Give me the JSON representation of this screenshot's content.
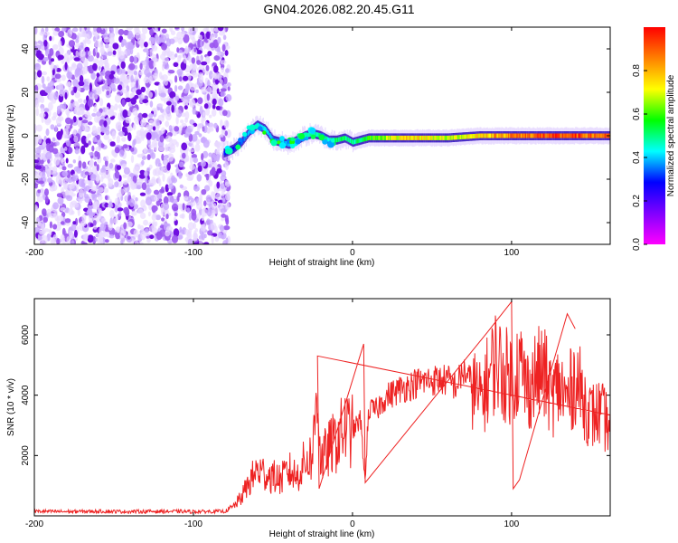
{
  "title": "GN04.2026.082.20.45.G11",
  "chart_data": [
    {
      "type": "heatmap",
      "xlabel": "Height of straight line (km)",
      "ylabel": "Frequency (Hz)",
      "xlim": [
        -200,
        162
      ],
      "ylim": [
        -50,
        50
      ],
      "x_ticks": [
        -200,
        -100,
        0,
        100
      ],
      "x_tick_labels": [
        "-200",
        "-100",
        "0",
        "100"
      ],
      "y_ticks": [
        -40,
        -20,
        0,
        20,
        40
      ],
      "y_tick_labels": [
        "-40",
        "-20",
        "0",
        "20",
        "40"
      ],
      "colorbar": {
        "label": "Normalized spectral amplitude",
        "range": [
          0,
          1
        ],
        "ticks": [
          0,
          0.2,
          0.4,
          0.6,
          0.8
        ],
        "tick_labels": [
          "0.0",
          "0.2",
          "0.4",
          "0.6",
          "0.8"
        ],
        "colors": [
          "#ff00ff",
          "#8000ff",
          "#0000ff",
          "#00ffff",
          "#00ff00",
          "#ffff00",
          "#ff8000",
          "#ff0000"
        ]
      },
      "noise_region_x": [
        -200,
        -81
      ],
      "signal_track": {
        "x": [
          -81,
          -75,
          -70,
          -65,
          -60,
          -55,
          -50,
          -45,
          -40,
          -35,
          -30,
          -25,
          -20,
          -15,
          -10,
          -5,
          0,
          10,
          20,
          40,
          60,
          80,
          100,
          120,
          140,
          162
        ],
        "y": [
          -8,
          -6,
          -3,
          2,
          5,
          3,
          -2,
          -3,
          -4,
          -2,
          0,
          1,
          0,
          -2,
          -2,
          -1,
          -3,
          -1,
          -1,
          -1,
          -1,
          0,
          0,
          0,
          0,
          0
        ],
        "amplitude": [
          0.3,
          0.3,
          0.35,
          0.4,
          0.45,
          0.45,
          0.4,
          0.4,
          0.4,
          0.45,
          0.5,
          0.5,
          0.5,
          0.5,
          0.55,
          0.55,
          0.5,
          0.6,
          0.7,
          0.8,
          0.7,
          0.8,
          0.9,
          0.95,
          0.95,
          0.9
        ]
      }
    },
    {
      "type": "line",
      "xlabel": "Height of straight line (km)",
      "ylabel": "SNR (10 * v/v)",
      "xlim": [
        -200,
        162
      ],
      "ylim": [
        0,
        7200
      ],
      "x_ticks": [
        -200,
        -100,
        0,
        100
      ],
      "x_tick_labels": [
        "-200",
        "-100",
        "0",
        "100"
      ],
      "y_ticks": [
        2000,
        4000,
        6000
      ],
      "y_tick_labels": [
        "2000",
        "4000",
        "6000"
      ],
      "color": "#ee2222",
      "series": [
        {
          "x": [
            -200,
            -180,
            -160,
            -140,
            -120,
            -100,
            -80,
            -75,
            -70,
            -65,
            -60,
            -55,
            -50,
            -45,
            -40,
            -35,
            -30,
            -25,
            -22,
            -20,
            -15,
            -10,
            -5,
            0,
            5,
            8,
            10,
            15,
            20,
            30,
            40,
            50,
            60,
            65,
            70,
            75,
            80,
            85,
            90,
            95,
            100,
            105,
            110,
            115,
            120,
            125,
            130,
            135,
            140,
            145,
            150,
            155,
            162
          ],
          "y": [
            150,
            140,
            150,
            140,
            150,
            140,
            150,
            300,
            600,
            1100,
            1500,
            1400,
            1300,
            1200,
            1500,
            1300,
            1800,
            2000,
            4500,
            1800,
            2200,
            2500,
            2900,
            2800,
            3200,
            1100,
            3500,
            3500,
            3900,
            4200,
            4400,
            4500,
            4500,
            4300,
            4800,
            4400,
            3800,
            4500,
            5200,
            4700,
            4600,
            5000,
            4200,
            4600,
            4800,
            3900,
            4300,
            3800,
            4600,
            3900,
            3300,
            3400,
            3000
          ]
        }
      ]
    }
  ]
}
